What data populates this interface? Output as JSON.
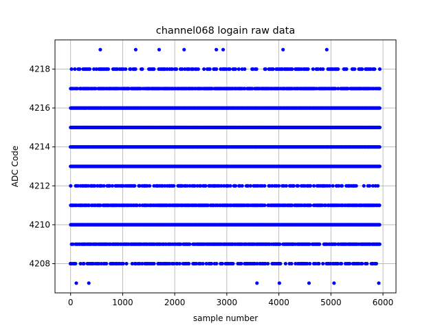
{
  "chart_data": {
    "type": "scatter",
    "title": "channel068 logain raw data",
    "xlabel": "sample number",
    "ylabel": "ADC Code",
    "xlim": [
      -300,
      6250
    ],
    "ylim": [
      4206.5,
      4219.5
    ],
    "xticks": [
      0,
      1000,
      2000,
      3000,
      4000,
      5000,
      6000
    ],
    "yticks": [
      4208,
      4210,
      4212,
      4214,
      4216,
      4218
    ],
    "grid": true,
    "marker_color": "#0000ff",
    "x_range": [
      0,
      5950
    ],
    "levels": [
      {
        "y": 4219,
        "density": "sparse",
        "x": [
          570,
          1250,
          1700,
          2180,
          2800,
          2930,
          4080,
          4920
        ]
      },
      {
        "y": 4218,
        "density": "medium"
      },
      {
        "y": 4217,
        "density": "dense"
      },
      {
        "y": 4216,
        "density": "full"
      },
      {
        "y": 4215,
        "density": "full"
      },
      {
        "y": 4214,
        "density": "full"
      },
      {
        "y": 4213,
        "density": "full"
      },
      {
        "y": 4212,
        "density": "medium"
      },
      {
        "y": 4211,
        "density": "dense"
      },
      {
        "y": 4210,
        "density": "full"
      },
      {
        "y": 4209,
        "density": "dense"
      },
      {
        "y": 4208,
        "density": "medium"
      },
      {
        "y": 4207,
        "density": "sparse",
        "x": [
          110,
          350,
          3580,
          4010,
          4580,
          5060,
          5920
        ]
      }
    ]
  }
}
